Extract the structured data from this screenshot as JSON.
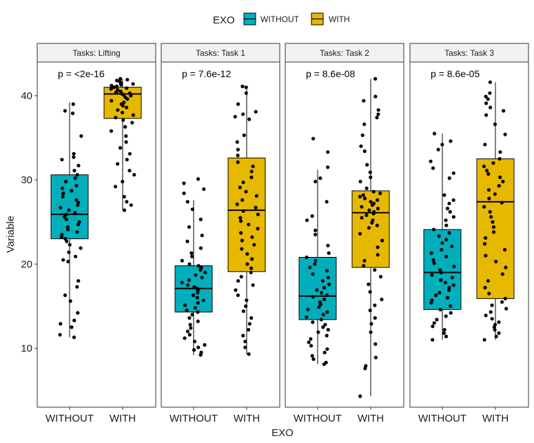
{
  "chart_data": {
    "type": "box",
    "xlabel": "EXO",
    "ylabel": "Variable",
    "ylim": [
      3,
      44
    ],
    "yticks": [
      10,
      20,
      30,
      40
    ],
    "categories": [
      "WITHOUT",
      "WITH"
    ],
    "legend": {
      "title": "EXO",
      "position": "top",
      "items": [
        {
          "label": "WITHOUT",
          "color": "#00AFBB"
        },
        {
          "label": "WITH",
          "color": "#E7B800"
        }
      ]
    },
    "grid": false,
    "panels": [
      {
        "strip": "Tasks: Lifting",
        "pvalue": "p = <2e-16",
        "boxes": [
          {
            "group": "WITHOUT",
            "min": 11.3,
            "q1": 23.0,
            "median": 25.9,
            "q3": 30.6,
            "max": 39.2,
            "points": [
              39.0,
              38.2,
              37.9,
              35.2,
              33.1,
              32.7,
              32.4,
              31.7,
              31.1,
              30.6,
              30.2,
              29.8,
              29.3,
              29.0,
              28.7,
              28.4,
              28.0,
              27.6,
              27.3,
              27.0,
              26.7,
              26.4,
              26.1,
              25.9,
              25.6,
              25.3,
              25.0,
              24.7,
              24.4,
              24.1,
              23.8,
              23.5,
              23.2,
              23.0,
              22.7,
              22.3,
              21.9,
              21.4,
              20.9,
              20.5,
              20.3,
              18.0,
              17.3,
              16.3,
              15.6,
              14.2,
              13.3,
              12.9,
              12.5,
              11.6,
              11.3
            ]
          },
          {
            "group": "WITH",
            "min": 26.4,
            "q1": 37.3,
            "median": 40.2,
            "q3": 41.0,
            "max": 42.0,
            "points": [
              42.0,
              41.9,
              41.8,
              41.7,
              41.6,
              41.5,
              41.4,
              41.3,
              41.2,
              41.1,
              41.0,
              40.9,
              40.8,
              40.7,
              40.6,
              40.5,
              40.4,
              40.3,
              40.2,
              40.1,
              40.0,
              39.8,
              39.6,
              39.4,
              39.2,
              39.0,
              38.8,
              38.6,
              38.3,
              38.0,
              37.7,
              37.4,
              37.1,
              36.8,
              36.3,
              35.8,
              35.2,
              34.5,
              33.8,
              33.1,
              32.4,
              31.9,
              31.1,
              30.6,
              29.8,
              29.2,
              28.0,
              27.4,
              27.0,
              26.4
            ]
          }
        ]
      },
      {
        "strip": "Tasks: Task 1",
        "pvalue": "p = 7.6e-12",
        "boxes": [
          {
            "group": "WITHOUT",
            "min": 9.2,
            "q1": 14.3,
            "median": 17.1,
            "q3": 19.8,
            "max": 27.6,
            "points": [
              30.1,
              29.6,
              28.9,
              28.4,
              27.4,
              26.5,
              25.3,
              24.4,
              23.4,
              22.7,
              21.9,
              21.3,
              20.9,
              20.4,
              20.0,
              19.8,
              19.6,
              19.3,
              19.0,
              18.7,
              18.4,
              18.1,
              17.8,
              17.5,
              17.3,
              17.1,
              16.9,
              16.6,
              16.3,
              16.0,
              15.7,
              15.4,
              15.1,
              14.8,
              14.5,
              14.3,
              14.0,
              13.6,
              13.2,
              12.8,
              12.4,
              12.0,
              11.6,
              11.2,
              10.8,
              10.4,
              10.1,
              9.8,
              9.5,
              9.2
            ]
          },
          {
            "group": "WITH",
            "min": 9.3,
            "q1": 19.1,
            "median": 26.4,
            "q3": 32.6,
            "max": 41.1,
            "points": [
              41.1,
              41.0,
              40.3,
              39.0,
              38.1,
              37.8,
              37.5,
              37.2,
              35.3,
              34.5,
              33.6,
              32.9,
              32.1,
              31.6,
              31.0,
              30.3,
              29.7,
              29.1,
              28.6,
              28.1,
              27.6,
              27.1,
              26.7,
              26.3,
              25.9,
              25.5,
              25.1,
              24.7,
              24.2,
              23.7,
              23.2,
              22.8,
              22.3,
              21.8,
              21.2,
              20.6,
              20.0,
              19.5,
              19.0,
              18.5,
              18.0,
              17.5,
              16.9,
              16.3,
              15.7,
              15.0,
              14.4,
              13.6,
              12.9,
              12.2,
              11.5,
              10.8,
              10.1,
              9.3
            ]
          }
        ]
      },
      {
        "strip": "Tasks: Task 2",
        "pvalue": "p = 8.6e-08",
        "boxes": [
          {
            "group": "WITHOUT",
            "min": 8.1,
            "q1": 13.4,
            "median": 16.2,
            "q3": 20.8,
            "max": 31.2,
            "points": [
              34.9,
              33.3,
              31.5,
              30.2,
              29.8,
              27.4,
              25.7,
              25.2,
              24.0,
              23.5,
              22.2,
              21.3,
              20.8,
              20.4,
              20.0,
              19.6,
              19.2,
              18.8,
              18.4,
              18.0,
              17.6,
              17.2,
              16.9,
              16.6,
              16.3,
              16.1,
              15.8,
              15.5,
              15.2,
              14.9,
              14.6,
              14.3,
              14.0,
              13.7,
              13.4,
              13.1,
              12.8,
              12.5,
              12.2,
              11.9,
              11.5,
              11.1,
              10.7,
              10.3,
              9.9,
              9.5,
              9.1,
              8.7,
              8.3,
              8.1
            ]
          },
          {
            "group": "WITH",
            "min": 4.3,
            "q1": 19.6,
            "median": 26.1,
            "q3": 28.7,
            "max": 42.0,
            "points": [
              42.0,
              39.9,
              39.4,
              38.3,
              37.8,
              37.4,
              36.6,
              35.3,
              34.0,
              33.4,
              31.8,
              30.9,
              30.3,
              29.8,
              29.0,
              28.6,
              28.4,
              28.2,
              28.0,
              27.8,
              27.6,
              27.4,
              27.2,
              27.0,
              26.8,
              26.6,
              26.4,
              26.2,
              26.0,
              25.8,
              25.5,
              25.2,
              24.9,
              24.6,
              24.3,
              23.6,
              22.8,
              22.0,
              21.1,
              20.4,
              19.8,
              19.3,
              18.5,
              17.6,
              16.7,
              15.8,
              15.1,
              14.5,
              13.6,
              12.9,
              11.9,
              10.5,
              8.9,
              7.9,
              7.6,
              4.3
            ]
          }
        ]
      },
      {
        "strip": "Tasks: Task 3",
        "pvalue": "p = 8.6e-05",
        "boxes": [
          {
            "group": "WITHOUT",
            "min": 11.0,
            "q1": 14.6,
            "median": 19.0,
            "q3": 24.1,
            "max": 35.5,
            "points": [
              35.5,
              34.6,
              34.2,
              33.6,
              32.2,
              31.4,
              30.8,
              30.2,
              28.2,
              27.6,
              27.2,
              26.6,
              26.2,
              25.6,
              25.2,
              24.6,
              24.1,
              23.7,
              23.3,
              22.9,
              22.5,
              22.1,
              21.7,
              21.3,
              20.9,
              20.5,
              20.1,
              19.7,
              19.3,
              19.0,
              18.7,
              18.4,
              18.1,
              17.8,
              17.5,
              17.2,
              16.9,
              16.6,
              16.3,
              16.0,
              15.7,
              15.4,
              15.0,
              14.6,
              14.2,
              13.8,
              13.4,
              13.0,
              12.6,
              12.2,
              11.8,
              11.4,
              11.0
            ]
          },
          {
            "group": "WITH",
            "min": 11.0,
            "q1": 15.9,
            "median": 27.4,
            "q3": 32.5,
            "max": 41.6,
            "points": [
              41.6,
              40.3,
              39.9,
              39.6,
              39.1,
              38.6,
              38.2,
              37.7,
              36.6,
              35.4,
              34.2,
              33.3,
              32.5,
              32.0,
              31.6,
              31.1,
              30.7,
              30.3,
              29.8,
              29.3,
              28.8,
              28.3,
              27.8,
              27.3,
              26.8,
              26.2,
              25.6,
              25.0,
              24.4,
              23.8,
              23.1,
              22.4,
              21.7,
              21.0,
              20.3,
              19.6,
              18.8,
              18.0,
              17.2,
              16.5,
              15.9,
              15.5,
              15.1,
              14.7,
              14.3,
              13.9,
              13.5,
              13.1,
              12.8,
              12.5,
              12.2,
              11.8,
              11.4,
              11.0
            ]
          }
        ]
      }
    ]
  }
}
